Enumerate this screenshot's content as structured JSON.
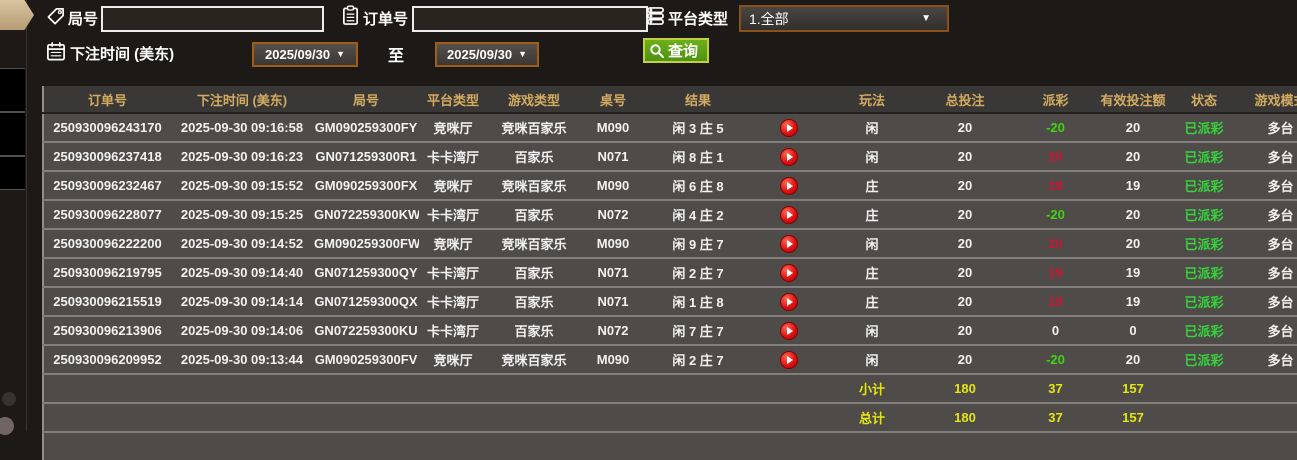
{
  "filters": {
    "round": {
      "label": "局号",
      "value": ""
    },
    "order": {
      "label": "订单号",
      "value": ""
    },
    "platform": {
      "label": "平台类型",
      "value": "1.全部"
    },
    "bet_time": {
      "label": "下注时间 (美东)",
      "from": "2025/09/30",
      "to": "2025/09/30",
      "to_label": "至"
    },
    "search_label": "查询"
  },
  "table": {
    "headers": [
      "订单号",
      "下注时间 (美东)",
      "局号",
      "平台类型",
      "游戏类型",
      "桌号",
      "结果",
      "",
      "玩法",
      "总投注",
      "派彩",
      "有效投注额",
      "状态",
      "游戏模式"
    ],
    "rows": [
      {
        "order_no": "250930096243170",
        "bet_time": "2025-09-30 09:16:58",
        "round_no": "GM090259300FY",
        "platform": "竞咪厅",
        "game_type": "竞咪百家乐",
        "table_no": "M090",
        "result": "闲 3 庄 5",
        "bet_side": "闲",
        "total_bet": "20",
        "payout": "-20",
        "valid_bet": "20",
        "status": "已派彩",
        "mode": "多台"
      },
      {
        "order_no": "250930096237418",
        "bet_time": "2025-09-30 09:16:23",
        "round_no": "GN071259300R1",
        "platform": "卡卡湾厅",
        "game_type": "百家乐",
        "table_no": "N071",
        "result": "闲 8 庄 1",
        "bet_side": "闲",
        "total_bet": "20",
        "payout": "20",
        "valid_bet": "20",
        "status": "已派彩",
        "mode": "多台"
      },
      {
        "order_no": "250930096232467",
        "bet_time": "2025-09-30 09:15:52",
        "round_no": "GM090259300FX",
        "platform": "竞咪厅",
        "game_type": "竞咪百家乐",
        "table_no": "M090",
        "result": "闲 6 庄 8",
        "bet_side": "庄",
        "total_bet": "20",
        "payout": "19",
        "valid_bet": "19",
        "status": "已派彩",
        "mode": "多台"
      },
      {
        "order_no": "250930096228077",
        "bet_time": "2025-09-30 09:15:25",
        "round_no": "GN072259300KW",
        "platform": "卡卡湾厅",
        "game_type": "百家乐",
        "table_no": "N072",
        "result": "闲 4 庄 2",
        "bet_side": "庄",
        "total_bet": "20",
        "payout": "-20",
        "valid_bet": "20",
        "status": "已派彩",
        "mode": "多台"
      },
      {
        "order_no": "250930096222200",
        "bet_time": "2025-09-30 09:14:52",
        "round_no": "GM090259300FW",
        "platform": "竞咪厅",
        "game_type": "竞咪百家乐",
        "table_no": "M090",
        "result": "闲 9 庄 7",
        "bet_side": "闲",
        "total_bet": "20",
        "payout": "20",
        "valid_bet": "20",
        "status": "已派彩",
        "mode": "多台"
      },
      {
        "order_no": "250930096219795",
        "bet_time": "2025-09-30 09:14:40",
        "round_no": "GN071259300QY",
        "platform": "卡卡湾厅",
        "game_type": "百家乐",
        "table_no": "N071",
        "result": "闲 2 庄 7",
        "bet_side": "庄",
        "total_bet": "20",
        "payout": "19",
        "valid_bet": "19",
        "status": "已派彩",
        "mode": "多台"
      },
      {
        "order_no": "250930096215519",
        "bet_time": "2025-09-30 09:14:14",
        "round_no": "GN071259300QX",
        "platform": "卡卡湾厅",
        "game_type": "百家乐",
        "table_no": "N071",
        "result": "闲 1 庄 8",
        "bet_side": "庄",
        "total_bet": "20",
        "payout": "19",
        "valid_bet": "19",
        "status": "已派彩",
        "mode": "多台"
      },
      {
        "order_no": "250930096213906",
        "bet_time": "2025-09-30 09:14:06",
        "round_no": "GN072259300KU",
        "platform": "卡卡湾厅",
        "game_type": "百家乐",
        "table_no": "N072",
        "result": "闲 7 庄 7",
        "bet_side": "闲",
        "total_bet": "20",
        "payout": "0",
        "valid_bet": "0",
        "status": "已派彩",
        "mode": "多台"
      },
      {
        "order_no": "250930096209952",
        "bet_time": "2025-09-30 09:13:44",
        "round_no": "GM090259300FV",
        "platform": "竞咪厅",
        "game_type": "竞咪百家乐",
        "table_no": "M090",
        "result": "闲 2 庄 7",
        "bet_side": "闲",
        "total_bet": "20",
        "payout": "-20",
        "valid_bet": "20",
        "status": "已派彩",
        "mode": "多台"
      }
    ],
    "subtotal": {
      "label": "小计",
      "total_bet": "180",
      "payout": "37",
      "valid_bet": "157"
    },
    "grand_total": {
      "label": "总计",
      "total_bet": "180",
      "payout": "37",
      "valid_bet": "157"
    }
  },
  "colors": {
    "accent_gold": "#d2ab61",
    "payout_win": "#c81634",
    "payout_loss": "#3fd60e",
    "status_green": "#35d53a",
    "totals_yellow": "#e4e70c",
    "button_green": "#5aa018",
    "date_border": "#a05e14"
  }
}
